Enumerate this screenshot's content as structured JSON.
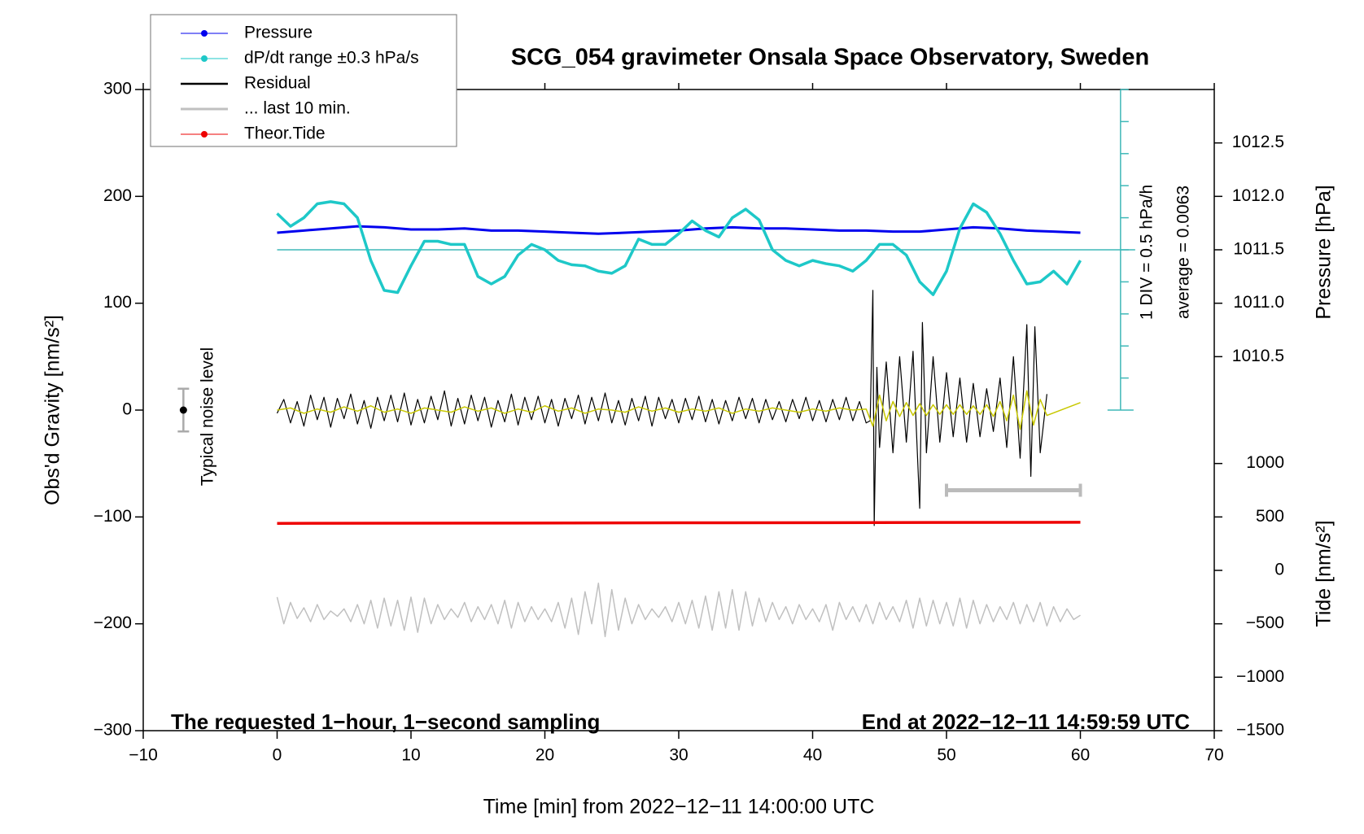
{
  "chart_data": {
    "type": "line",
    "title": "SCG_054 gravimeter Onsala Space Observatory, Sweden",
    "xlabel": "Time [min] from 2022−12−11 14:00:00 UTC",
    "ylabel": "Obs'd Gravity [nm/s²]",
    "y2label": "Pressure [hPa]",
    "y3label": "Tide [nm/s²]",
    "xlim": [
      -10,
      70
    ],
    "xticks": [
      {
        "value": -10,
        "label": "−10"
      },
      0,
      10,
      20,
      30,
      40,
      50,
      60,
      70
    ],
    "ylim": [
      -300,
      300
    ],
    "yticks": [
      {
        "value": -300,
        "label": "−300"
      },
      {
        "value": -200,
        "label": "−200"
      },
      {
        "value": -100,
        "label": "−100"
      },
      0,
      100,
      200,
      300
    ],
    "y2lim": [
      1007.0,
      1013.0
    ],
    "y2ticks": [
      1010.5,
      {
        "value": 1011.0,
        "label": "1011.0"
      },
      1011.5,
      {
        "value": 1012.0,
        "label": "1012.0"
      },
      1012.5
    ],
    "y3lim": [
      -1500,
      4500
    ],
    "y3ticks": [
      {
        "value": -1500,
        "label": "−1500"
      },
      {
        "value": -1000,
        "label": "−1000"
      },
      {
        "value": -500,
        "label": "−500"
      },
      0,
      500,
      1000
    ],
    "annotations": [
      "The requested 1−hour, 1−second sampling",
      "End at 2022−12−11 14:59:59 UTC",
      "1 DIV = 0.5 hPa/h",
      "average = 0.0063",
      "Typical noise level"
    ],
    "noise_level": {
      "x": -7,
      "value": 0,
      "error": 20
    },
    "window_bar": {
      "x": [
        50,
        60
      ],
      "y": -75,
      "color": "#bbbbbb"
    },
    "dpdt_scale": {
      "x": 63,
      "baseline": 150,
      "color": "#3fb8b8",
      "ticks": [
        0,
        30,
        60,
        90,
        120,
        150,
        180,
        210,
        240,
        270,
        300
      ]
    },
    "series": [
      {
        "name": "Pressure",
        "color": "#0000ee",
        "axis": "y2",
        "width": 3,
        "x": [
          0,
          2,
          4,
          6,
          8,
          10,
          12,
          14,
          16,
          18,
          20,
          22,
          24,
          26,
          28,
          30,
          32,
          34,
          36,
          38,
          40,
          42,
          44,
          46,
          48,
          50,
          52,
          54,
          56,
          58,
          60
        ],
        "values": [
          1011.66,
          1011.68,
          1011.7,
          1011.72,
          1011.71,
          1011.69,
          1011.69,
          1011.7,
          1011.68,
          1011.68,
          1011.67,
          1011.66,
          1011.65,
          1011.66,
          1011.67,
          1011.68,
          1011.7,
          1011.71,
          1011.7,
          1011.7,
          1011.69,
          1011.68,
          1011.68,
          1011.67,
          1011.67,
          1011.69,
          1011.71,
          1011.7,
          1011.68,
          1011.67,
          1011.66
        ]
      },
      {
        "name": "dP/dt range ±0.3 hPa/s",
        "color": "#1ec8c8",
        "width": 3.5,
        "x": [
          0,
          1,
          2,
          3,
          4,
          5,
          6,
          7,
          8,
          9,
          10,
          11,
          12,
          13,
          14,
          15,
          16,
          17,
          18,
          19,
          20,
          21,
          22,
          23,
          24,
          25,
          26,
          27,
          28,
          29,
          30,
          31,
          32,
          33,
          34,
          35,
          36,
          37,
          38,
          39,
          40,
          41,
          42,
          43,
          44,
          45,
          46,
          47,
          48,
          49,
          50,
          51,
          52,
          53,
          54,
          55,
          56,
          57,
          58,
          59,
          60
        ],
        "values": [
          184,
          172,
          180,
          193,
          195,
          193,
          180,
          140,
          112,
          110,
          135,
          158,
          158,
          155,
          155,
          125,
          118,
          125,
          145,
          155,
          150,
          140,
          136,
          135,
          130,
          128,
          135,
          160,
          155,
          155,
          165,
          177,
          168,
          162,
          180,
          188,
          178,
          150,
          140,
          135,
          140,
          137,
          135,
          130,
          140,
          155,
          155,
          145,
          120,
          108,
          130,
          170,
          193,
          185,
          165,
          140,
          118,
          120,
          130,
          118,
          140
        ]
      },
      {
        "name": "Residual",
        "color": "#000000",
        "width": 1.2,
        "x": [
          0,
          0.5,
          1,
          1.5,
          2,
          2.5,
          3,
          3.5,
          4,
          4.5,
          5,
          5.5,
          6,
          6.5,
          7,
          7.5,
          8,
          8.5,
          9,
          9.5,
          10,
          10.5,
          11,
          11.5,
          12,
          12.5,
          13,
          13.5,
          14,
          14.5,
          15,
          15.5,
          16,
          16.5,
          17,
          17.5,
          18,
          18.5,
          19,
          19.5,
          20,
          20.5,
          21,
          21.5,
          22,
          22.5,
          23,
          23.5,
          24,
          24.5,
          25,
          25.5,
          26,
          26.5,
          27,
          27.5,
          28,
          28.5,
          29,
          29.5,
          30,
          30.5,
          31,
          31.5,
          32,
          32.5,
          33,
          33.5,
          34,
          34.5,
          35,
          35.5,
          36,
          36.5,
          37,
          37.5,
          38,
          38.5,
          39,
          39.5,
          40,
          40.5,
          41,
          41.5,
          42,
          42.5,
          43,
          43.5,
          44,
          44.3,
          44.5,
          44.6,
          44.8,
          45,
          45.5,
          46,
          46.5,
          47,
          47.5,
          48,
          48.2,
          48.5,
          49,
          49.5,
          50,
          50.5,
          51,
          51.5,
          52,
          52.5,
          53,
          53.5,
          54,
          54.5,
          55,
          55.5,
          56,
          56.3,
          56.6,
          57,
          57.5
        ],
        "values": [
          -3,
          10,
          -12,
          8,
          -15,
          14,
          -9,
          12,
          -16,
          11,
          -8,
          15,
          -13,
          9,
          -17,
          12,
          -10,
          14,
          -11,
          16,
          -14,
          10,
          -12,
          13,
          -9,
          18,
          -15,
          11,
          -13,
          14,
          -10,
          12,
          -16,
          9,
          -11,
          15,
          -14,
          12,
          -9,
          13,
          -12,
          10,
          -15,
          11,
          -8,
          14,
          -13,
          12,
          -10,
          16,
          -12,
          9,
          -14,
          11,
          -10,
          13,
          -15,
          12,
          -8,
          10,
          -12,
          11,
          -9,
          13,
          -11,
          10,
          -13,
          9,
          -10,
          12,
          -8,
          11,
          -12,
          10,
          -9,
          8,
          -11,
          10,
          -8,
          12,
          -10,
          9,
          -11,
          10,
          -9,
          12,
          -10,
          8,
          -12,
          -10,
          112,
          -108,
          40,
          -35,
          45,
          -40,
          50,
          -30,
          55,
          -92,
          82,
          -40,
          50,
          -30,
          35,
          -25,
          30,
          -30,
          25,
          -25,
          20,
          -20,
          30,
          -35,
          50,
          -45,
          80,
          -62,
          78,
          -40,
          15
        ]
      },
      {
        "name": "... last 10 min.",
        "color": "#c0c0c0",
        "width": 1.5,
        "x": [
          0,
          0.5,
          1,
          1.5,
          2,
          2.5,
          3,
          3.5,
          4,
          4.5,
          5,
          5.5,
          6,
          6.5,
          7,
          7.5,
          8,
          8.5,
          9,
          9.5,
          10,
          10.5,
          11,
          11.5,
          12,
          12.5,
          13,
          13.5,
          14,
          14.5,
          15,
          15.5,
          16,
          16.5,
          17,
          17.5,
          18,
          18.5,
          19,
          19.5,
          20,
          20.5,
          21,
          21.5,
          22,
          22.5,
          23,
          23.5,
          24,
          24.5,
          25,
          25.5,
          26,
          26.5,
          27,
          27.5,
          28,
          28.5,
          29,
          29.5,
          30,
          30.5,
          31,
          31.5,
          32,
          32.5,
          33,
          33.5,
          34,
          34.5,
          35,
          35.5,
          36,
          36.5,
          37,
          37.5,
          38,
          38.5,
          39,
          39.5,
          40,
          40.5,
          41,
          41.5,
          42,
          42.5,
          43,
          43.5,
          44,
          44.5,
          45,
          45.5,
          46,
          46.5,
          47,
          47.5,
          48,
          48.5,
          49,
          49.5,
          50,
          50.5,
          51,
          51.5,
          52,
          52.5,
          53,
          53.5,
          54,
          54.5,
          55,
          55.5,
          56,
          56.5,
          57,
          57.5,
          58,
          58.5,
          59,
          59.5,
          60
        ],
        "values": [
          -175,
          -200,
          -180,
          -195,
          -185,
          -198,
          -182,
          -196,
          -188,
          -193,
          -186,
          -198,
          -182,
          -200,
          -178,
          -204,
          -176,
          -202,
          -178,
          -206,
          -175,
          -208,
          -176,
          -200,
          -182,
          -196,
          -186,
          -194,
          -180,
          -198,
          -184,
          -196,
          -182,
          -200,
          -178,
          -204,
          -180,
          -198,
          -184,
          -196,
          -186,
          -198,
          -180,
          -204,
          -176,
          -210,
          -170,
          -200,
          -162,
          -212,
          -168,
          -206,
          -176,
          -200,
          -182,
          -196,
          -186,
          -194,
          -184,
          -198,
          -180,
          -200,
          -178,
          -204,
          -174,
          -206,
          -170,
          -204,
          -168,
          -206,
          -170,
          -202,
          -176,
          -198,
          -180,
          -196,
          -184,
          -200,
          -182,
          -196,
          -186,
          -198,
          -182,
          -206,
          -180,
          -196,
          -184,
          -198,
          -182,
          -200,
          -180,
          -196,
          -184,
          -198,
          -178,
          -204,
          -176,
          -202,
          -178,
          -200,
          -180,
          -202,
          -176,
          -204,
          -178,
          -200,
          -182,
          -198,
          -184,
          -196,
          -180,
          -200,
          -182,
          -198,
          -180,
          -202,
          -184,
          -198,
          -186,
          -196,
          -192
        ]
      },
      {
        "name": "Theor.Tide",
        "color": "#ee0000",
        "axis": "y3",
        "width": 3.5,
        "x": [
          0,
          30,
          60
        ],
        "values": [
          440,
          445,
          450
        ]
      },
      {
        "color": "#c8c800",
        "width": 1.5,
        "x": [
          0,
          1,
          2,
          3,
          4,
          5,
          6,
          7,
          8,
          9,
          10,
          11,
          12,
          13,
          14,
          15,
          16,
          17,
          18,
          19,
          20,
          21,
          22,
          23,
          24,
          25,
          26,
          27,
          28,
          29,
          30,
          31,
          32,
          33,
          34,
          35,
          36,
          37,
          38,
          39,
          40,
          41,
          42,
          43,
          44,
          44.5,
          45,
          45.5,
          46,
          46.5,
          47,
          47.5,
          48,
          48.5,
          49,
          49.5,
          50,
          50.5,
          51,
          51.5,
          52,
          52.5,
          53,
          53.5,
          54,
          54.5,
          55,
          55.5,
          56,
          56.5,
          57,
          57.5,
          60
        ],
        "values": [
          0,
          2,
          -3,
          1,
          -2,
          3,
          -1,
          4,
          -2,
          1,
          -3,
          2,
          0,
          -2,
          3,
          -1,
          2,
          -3,
          1,
          -2,
          4,
          -1,
          2,
          -3,
          1,
          0,
          -2,
          3,
          -1,
          2,
          -2,
          1,
          -1,
          2,
          -3,
          1,
          -1,
          2,
          0,
          -2,
          1,
          -1,
          2,
          0,
          1,
          -15,
          14,
          -10,
          8,
          -6,
          7,
          -5,
          6,
          -5,
          5,
          -4,
          5,
          -4,
          5,
          -4,
          4,
          -4,
          5,
          -6,
          8,
          -10,
          14,
          -18,
          18,
          -14,
          10,
          -5,
          7
        ]
      }
    ]
  }
}
